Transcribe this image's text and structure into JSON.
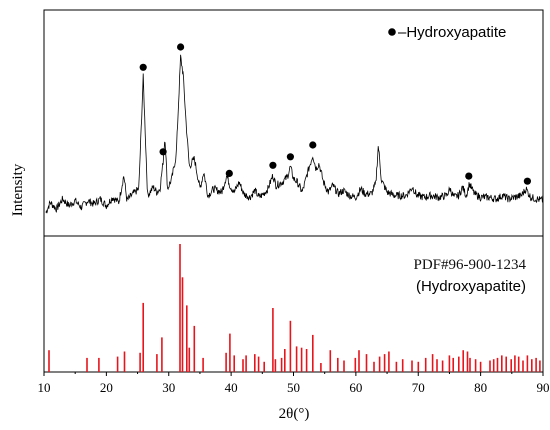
{
  "chart_data": {
    "type": "line",
    "xlabel": "2θ(°)",
    "ylabel": "Intensity",
    "xlim": [
      10,
      90
    ],
    "x_ticks": [
      "10",
      "20",
      "30",
      "40",
      "50",
      "60",
      "70",
      "80",
      "90"
    ],
    "grid": false,
    "legend": {
      "marker": "filled-circle",
      "label": "–Hydroxyapatite",
      "placement": "top-right"
    },
    "top_panel": {
      "series_color": "#000000",
      "profile": [
        [
          10.3,
          8
        ],
        [
          11,
          14
        ],
        [
          12,
          10
        ],
        [
          13,
          16
        ],
        [
          14,
          12
        ],
        [
          15,
          15
        ],
        [
          16,
          11
        ],
        [
          17,
          15
        ],
        [
          18,
          13
        ],
        [
          19,
          16
        ],
        [
          20,
          12
        ],
        [
          21,
          17
        ],
        [
          22,
          14
        ],
        [
          22.8,
          30
        ],
        [
          23.3,
          15
        ],
        [
          24,
          18
        ],
        [
          25.2,
          22
        ],
        [
          25.9,
          88
        ],
        [
          26.6,
          18
        ],
        [
          27.5,
          23
        ],
        [
          28.1,
          20
        ],
        [
          28.6,
          22
        ],
        [
          29.1,
          38
        ],
        [
          29.4,
          53
        ],
        [
          29.8,
          22
        ],
        [
          30.5,
          28
        ],
        [
          31.2,
          42
        ],
        [
          31.9,
          100
        ],
        [
          32.3,
          90
        ],
        [
          32.8,
          60
        ],
        [
          33.3,
          35
        ],
        [
          34.1,
          40
        ],
        [
          35,
          22
        ],
        [
          35.6,
          32
        ],
        [
          36.3,
          18
        ],
        [
          37.2,
          22
        ],
        [
          38.5,
          20
        ],
        [
          39.3,
          30
        ],
        [
          39.8,
          24
        ],
        [
          40.5,
          20
        ],
        [
          41.3,
          26
        ],
        [
          42,
          19
        ],
        [
          43,
          17
        ],
        [
          43.8,
          21
        ],
        [
          44.5,
          17
        ],
        [
          45.2,
          19
        ],
        [
          45.9,
          22
        ],
        [
          46.7,
          30
        ],
        [
          47.2,
          24
        ],
        [
          48.2,
          26
        ],
        [
          49,
          29
        ],
        [
          49.5,
          35
        ],
        [
          50,
          28
        ],
        [
          50.6,
          26
        ],
        [
          51.4,
          20
        ],
        [
          52.3,
          32
        ],
        [
          53.1,
          42
        ],
        [
          53.6,
          34
        ],
        [
          54.1,
          37
        ],
        [
          54.8,
          26
        ],
        [
          55.6,
          20
        ],
        [
          56.3,
          24
        ],
        [
          57.2,
          19
        ],
        [
          58,
          21
        ],
        [
          59,
          18
        ],
        [
          60,
          17
        ],
        [
          60.8,
          22
        ],
        [
          61.5,
          19
        ],
        [
          62.5,
          19
        ],
        [
          63.2,
          25
        ],
        [
          63.6,
          48
        ],
        [
          64.1,
          27
        ],
        [
          65,
          20
        ],
        [
          66.3,
          18
        ],
        [
          68,
          18
        ],
        [
          69.1,
          23
        ],
        [
          69.8,
          18
        ],
        [
          71,
          17
        ],
        [
          72,
          18
        ],
        [
          73.3,
          17
        ],
        [
          74.5,
          18
        ],
        [
          75.1,
          22
        ],
        [
          75.7,
          17
        ],
        [
          76.5,
          18
        ],
        [
          77.1,
          23
        ],
        [
          77.7,
          18
        ],
        [
          78.2,
          25
        ],
        [
          79,
          19
        ],
        [
          80,
          17
        ],
        [
          81.2,
          17
        ],
        [
          82.5,
          16
        ],
        [
          83.5,
          18
        ],
        [
          84.5,
          16
        ],
        [
          85.5,
          17
        ],
        [
          86.5,
          18
        ],
        [
          87.3,
          22
        ],
        [
          88,
          17
        ],
        [
          89,
          16
        ],
        [
          90,
          15
        ]
      ],
      "hydroxyapatite_peaks": [
        25.9,
        29.1,
        31.9,
        39.7,
        46.7,
        49.5,
        53.1,
        78.1,
        87.5
      ]
    },
    "reference_label": "PDF#96-900-1234",
    "reference_phase": "(Hydroxyapatite)",
    "reference_color": "#e8141c",
    "reference_sticks": [
      [
        10.8,
        17
      ],
      [
        16.9,
        11
      ],
      [
        18.8,
        11
      ],
      [
        21.8,
        12
      ],
      [
        22.9,
        16
      ],
      [
        25.4,
        15
      ],
      [
        25.9,
        54
      ],
      [
        28.1,
        14
      ],
      [
        28.9,
        27
      ],
      [
        31.8,
        100
      ],
      [
        32.2,
        74
      ],
      [
        32.9,
        52
      ],
      [
        33.3,
        19
      ],
      [
        34.1,
        36
      ],
      [
        35.5,
        11
      ],
      [
        39.2,
        15
      ],
      [
        39.8,
        30
      ],
      [
        40.5,
        13
      ],
      [
        41.9,
        10
      ],
      [
        42.4,
        13
      ],
      [
        43.8,
        14
      ],
      [
        44.4,
        12
      ],
      [
        45.3,
        8
      ],
      [
        46.7,
        50
      ],
      [
        47.1,
        10
      ],
      [
        48.1,
        11
      ],
      [
        48.6,
        18
      ],
      [
        49.5,
        40
      ],
      [
        50.5,
        20
      ],
      [
        51.3,
        19
      ],
      [
        52.1,
        18
      ],
      [
        53.1,
        29
      ],
      [
        54.4,
        7
      ],
      [
        55.9,
        17
      ],
      [
        57.1,
        11
      ],
      [
        58.1,
        9
      ],
      [
        59.9,
        11
      ],
      [
        60.5,
        17
      ],
      [
        61.7,
        14
      ],
      [
        62.9,
        8
      ],
      [
        63.8,
        12
      ],
      [
        64.6,
        14
      ],
      [
        65.3,
        16
      ],
      [
        66.5,
        8
      ],
      [
        67.5,
        10
      ],
      [
        69,
        9
      ],
      [
        70,
        8
      ],
      [
        71.2,
        11
      ],
      [
        72.3,
        14
      ],
      [
        73,
        10
      ],
      [
        73.9,
        9
      ],
      [
        75,
        13
      ],
      [
        75.6,
        11
      ],
      [
        76.5,
        12
      ],
      [
        77.2,
        17
      ],
      [
        77.9,
        16
      ],
      [
        78.3,
        11
      ],
      [
        79.2,
        10
      ],
      [
        80,
        8
      ],
      [
        81.5,
        9
      ],
      [
        82.1,
        10
      ],
      [
        82.7,
        11
      ],
      [
        83.4,
        13
      ],
      [
        84.1,
        12
      ],
      [
        84.9,
        10
      ],
      [
        85.5,
        13
      ],
      [
        86.1,
        12
      ],
      [
        86.8,
        9
      ],
      [
        87.5,
        13
      ],
      [
        88.2,
        10
      ],
      [
        88.9,
        11
      ],
      [
        89.5,
        9
      ]
    ]
  }
}
